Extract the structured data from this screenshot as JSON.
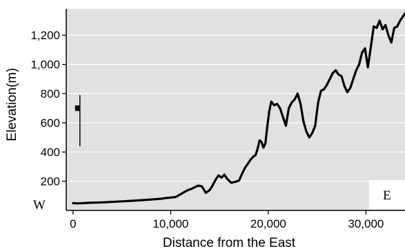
{
  "chart_data": {
    "type": "line",
    "title": "",
    "xlabel": "Distance from the East",
    "ylabel": "Elevation(m)",
    "xlim": [
      -700,
      34000
    ],
    "ylim": [
      0,
      1380
    ],
    "x_ticks": [
      0,
      10000,
      20000,
      30000
    ],
    "x_tick_labels": [
      "0",
      "10,000",
      "20,000",
      "30,000"
    ],
    "y_ticks": [
      200,
      400,
      600,
      800,
      1000,
      1200
    ],
    "y_tick_labels": [
      "200",
      "400",
      "600",
      "800",
      "1,000",
      "1,200"
    ],
    "grid": "horizontal",
    "background_color": "#e1e1e1",
    "line_color": "#000000",
    "annotations": {
      "west_label": "W",
      "east_label": "E"
    },
    "inset_marker": {
      "description": "small vertical tick with square marker near left edge",
      "x": 700,
      "y_top": 790,
      "y_bottom": 440,
      "square_y": 700
    },
    "series": [
      {
        "x": [
          0,
          500,
          1500,
          3000,
          5000,
          7000,
          8000,
          9000,
          9500,
          10000,
          10500,
          11000,
          11500,
          11800,
          12200,
          12500,
          12800,
          13200,
          13600,
          14000,
          14200,
          14600,
          14900,
          15200,
          15500,
          15800,
          16200,
          16600,
          17000,
          17300,
          17600,
          17900,
          18200,
          18500,
          18700,
          18900,
          19100,
          19300,
          19500,
          19700,
          19900,
          20100,
          20300,
          20600,
          20900,
          21200,
          21500,
          21800,
          22100,
          22400,
          22700,
          23000,
          23300,
          23600,
          23900,
          24200,
          24500,
          24800,
          25100,
          25400,
          25700,
          26000,
          26300,
          26600,
          26900,
          27200,
          27500,
          27800,
          28100,
          28400,
          28700,
          29000,
          29300,
          29600,
          29900,
          30200,
          30500,
          30800,
          31100,
          31400,
          31700,
          32000,
          32300,
          32600,
          32900,
          33200,
          33500,
          33800,
          34000
        ],
        "y": [
          50,
          48,
          52,
          55,
          62,
          70,
          75,
          80,
          85,
          88,
          92,
          110,
          130,
          140,
          150,
          160,
          170,
          165,
          120,
          140,
          160,
          210,
          240,
          225,
          245,
          215,
          190,
          195,
          205,
          250,
          290,
          320,
          350,
          370,
          380,
          420,
          480,
          470,
          430,
          460,
          580,
          680,
          745,
          720,
          730,
          700,
          640,
          580,
          700,
          740,
          760,
          800,
          730,
          610,
          540,
          500,
          530,
          580,
          740,
          820,
          830,
          860,
          900,
          940,
          960,
          930,
          920,
          850,
          810,
          840,
          900,
          960,
          1000,
          1080,
          1110,
          980,
          1120,
          1260,
          1250,
          1300,
          1240,
          1270,
          1200,
          1150,
          1250,
          1260,
          1300,
          1330,
          1350
        ]
      }
    ]
  }
}
